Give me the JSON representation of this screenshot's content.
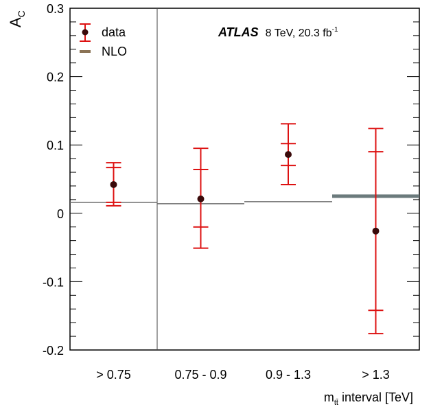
{
  "chart_data": {
    "type": "scatter",
    "ylabel": "A",
    "ylabel_sub": "C",
    "xlabel": {
      "prefix": "m",
      "subscript": "tt̄",
      "suffix": " interval [TeV]"
    },
    "categories": [
      "> 0.75",
      "0.75 - 0.9",
      "0.9 - 1.3",
      "> 1.3"
    ],
    "ylim": [
      -0.2,
      0.3
    ],
    "yticks": [
      {
        "value": -0.2,
        "label": "-0.2"
      },
      {
        "value": -0.1,
        "label": "-0.1"
      },
      {
        "value": 0,
        "label": "0"
      },
      {
        "value": 0.1,
        "label": "0.1"
      },
      {
        "value": 0.2,
        "label": "0.2"
      },
      {
        "value": 0.3,
        "label": "0.3"
      }
    ],
    "grid": false,
    "legend": {
      "placement": "top-left",
      "entries": [
        {
          "label": "data",
          "kind": "marker-errorbar"
        },
        {
          "label": "NLO",
          "kind": "line"
        }
      ]
    },
    "annotation": {
      "experiment": "ATLAS",
      "energy": "8 TeV, 20.3 fb",
      "lumi_superscript": "-1"
    },
    "series": [
      {
        "name": "data",
        "color": "#3a0a0a",
        "error_color": "#dd1111",
        "points": [
          {
            "category": "> 0.75",
            "y": 0.042,
            "stat": [
              0.016,
              0.067
            ],
            "total": [
              0.011,
              0.074
            ]
          },
          {
            "category": "0.75 - 0.9",
            "y": 0.021,
            "stat": [
              -0.02,
              0.064
            ],
            "total": [
              -0.051,
              0.095
            ]
          },
          {
            "category": "0.9 - 1.3",
            "y": 0.086,
            "stat": [
              0.07,
              0.102
            ],
            "total": [
              0.042,
              0.131
            ]
          },
          {
            "category": "> 1.3",
            "y": -0.026,
            "stat": [
              -0.142,
              0.09
            ],
            "total": [
              -0.176,
              0.124
            ]
          }
        ]
      },
      {
        "name": "NLO",
        "color": "#8b7355",
        "values": [
          0.016,
          0.014,
          0.017,
          0.025
        ]
      }
    ]
  }
}
